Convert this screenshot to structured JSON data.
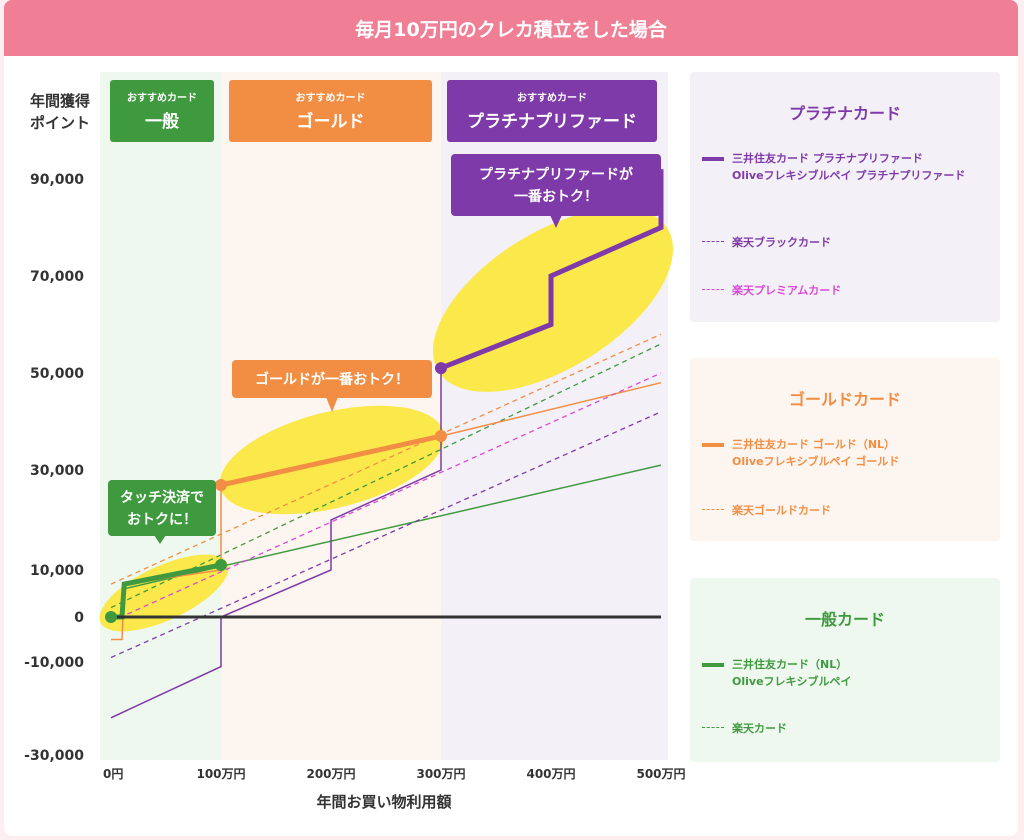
{
  "title": "毎月10万円のクレカ積立をした場合",
  "chart_data": {
    "type": "line",
    "ylabel": "年間獲得\nポイント",
    "xlabel": "年間お買い物利用額",
    "xlim": [
      0,
      500
    ],
    "ylim": [
      -30000,
      100000
    ],
    "x_unit": "万円",
    "y_ticks": [
      -30000,
      -10000,
      0,
      10000,
      30000,
      50000,
      70000,
      90000
    ],
    "y_tick_labels": [
      "-30,000",
      "-10,000",
      "0",
      "10,000",
      "30,000",
      "50,000",
      "70,000",
      "90,000"
    ],
    "x_ticks": [
      0,
      100,
      200,
      300,
      400,
      500
    ],
    "x_tick_labels": [
      "0円",
      "100万円",
      "200万円",
      "300万円",
      "400万円",
      "500万円"
    ],
    "zones": [
      {
        "from": 0,
        "to": 100,
        "color": "#eef8ef",
        "tag": "おすすめカード",
        "label": "一般",
        "tag_color": "#3f9a3f"
      },
      {
        "from": 100,
        "to": 300,
        "color": "#fdf5ef",
        "tag": "おすすめカード",
        "label": "ゴールド",
        "tag_color": "#f28e44"
      },
      {
        "from": 300,
        "to": 500,
        "color": "#f3f0f7",
        "tag": "おすすめカード",
        "label": "プラチナプリファード",
        "tag_color": "#7e3aa8"
      }
    ],
    "series": [
      {
        "id": "mitsui-nl",
        "legend": "mitsui-nl",
        "color": "#3f9a3f",
        "style": "solid",
        "width": 1.5,
        "x": [
          0,
          10,
          12,
          500
        ],
        "y": [
          0,
          0,
          6000,
          31000
        ]
      },
      {
        "id": "rakuten-card",
        "legend": "rakuten",
        "color": "#3f9a3f",
        "style": "dashed",
        "width": 1.3,
        "x": [
          0,
          500
        ],
        "y": [
          2000,
          56000
        ]
      },
      {
        "id": "mitsui-gold",
        "legend": "mitsui-gold",
        "color": "#f28e44",
        "style": "solid",
        "width": 1.5,
        "x": [
          0,
          10,
          12,
          100,
          100,
          300,
          500
        ],
        "y": [
          -5000,
          -5000,
          7000,
          10000,
          27000,
          37000,
          48000
        ]
      },
      {
        "id": "rakuten-gold",
        "legend": "rakuten-gold",
        "color": "#f28e44",
        "style": "dashed",
        "width": 1.3,
        "x": [
          0,
          500
        ],
        "y": [
          7000,
          58000
        ]
      },
      {
        "id": "mitsui-platinum",
        "legend": "mitsui-platinum",
        "color": "#7e3aa8",
        "style": "solid",
        "width": 1.5,
        "x": [
          0,
          100,
          100,
          200,
          200,
          300,
          300,
          400,
          400,
          500,
          500
        ],
        "y": [
          -22000,
          -11000,
          0,
          10000,
          20000,
          30000,
          51000,
          60000,
          70000,
          80000,
          92000
        ]
      },
      {
        "id": "rakuten-black",
        "legend": "rakuten-black",
        "color": "#7e3aa8",
        "style": "dashed",
        "width": 1.3,
        "x": [
          0,
          500
        ],
        "y": [
          -9000,
          42000
        ]
      },
      {
        "id": "rakuten-premium",
        "legend": "rakuten-premium",
        "color": "#d84ad8",
        "style": "dashed",
        "width": 1.3,
        "x": [
          0,
          500
        ],
        "y": [
          -1000,
          50000
        ]
      },
      {
        "id": "optimal-general",
        "color": "#3f9a3f",
        "style": "solid",
        "width": 5,
        "x": [
          0,
          10,
          12,
          100
        ],
        "y": [
          0,
          0,
          7000,
          11000
        ]
      },
      {
        "id": "optimal-gold",
        "color": "#f28e44",
        "style": "solid",
        "width": 5,
        "x": [
          100,
          300
        ],
        "y": [
          27000,
          37000
        ]
      },
      {
        "id": "optimal-platinum",
        "color": "#7e3aa8",
        "style": "solid",
        "width": 5,
        "x": [
          300,
          400,
          400,
          500,
          500
        ],
        "y": [
          51000,
          60000,
          70000,
          80000,
          92000
        ]
      },
      {
        "id": "zero-line",
        "color": "#333333",
        "style": "solid",
        "width": 3,
        "x": [
          0,
          500
        ],
        "y": [
          0,
          0
        ]
      }
    ],
    "points": [
      {
        "x": 0,
        "y": 0,
        "color": "#3f9a3f"
      },
      {
        "x": 100,
        "y": 11000,
        "color": "#3f9a3f"
      },
      {
        "x": 100,
        "y": 27000,
        "color": "#f28e44"
      },
      {
        "x": 300,
        "y": 37000,
        "color": "#f28e44"
      },
      {
        "x": 300,
        "y": 51000,
        "color": "#7e3aa8"
      }
    ],
    "callouts": [
      {
        "text": "タッチ決済で\nおトクに！",
        "color": "#3f9a3f"
      },
      {
        "text": "ゴールドが一番おトク！",
        "color": "#f28e44"
      },
      {
        "text": "プラチナプリファードが\n一番おトク！",
        "color": "#7e3aa8"
      }
    ],
    "highlight_color": "#fbe84a",
    "legend_groups": [
      {
        "title": "プラチナカード",
        "color": "#7e3aa8",
        "bg": "#f3f0f7",
        "items": [
          {
            "label": "三井住友カード プラチナプリファード\nOliveフレキシブルペイ プラチナプリファード",
            "style": "solid",
            "color": "#7e3aa8"
          },
          {
            "label": "楽天ブラックカード",
            "style": "dashed",
            "color": "#7e3aa8"
          },
          {
            "label": "楽天プレミアムカード",
            "style": "dashed",
            "color": "#d84ad8"
          }
        ]
      },
      {
        "title": "ゴールドカード",
        "color": "#f28e44",
        "bg": "#fdf5ef",
        "items": [
          {
            "label": "三井住友カード ゴールド（NL）\nOliveフレキシブルペイ ゴールド",
            "style": "solid",
            "color": "#f28e44"
          },
          {
            "label": "楽天ゴールドカード",
            "style": "dashed",
            "color": "#f28e44"
          }
        ]
      },
      {
        "title": "一般カード",
        "color": "#3f9a3f",
        "bg": "#eef8ef",
        "items": [
          {
            "label": "三井住友カード（NL）\nOliveフレキシブルペイ",
            "style": "solid",
            "color": "#3f9a3f"
          },
          {
            "label": "楽天カード",
            "style": "dashed",
            "color": "#3f9a3f"
          }
        ]
      }
    ]
  }
}
